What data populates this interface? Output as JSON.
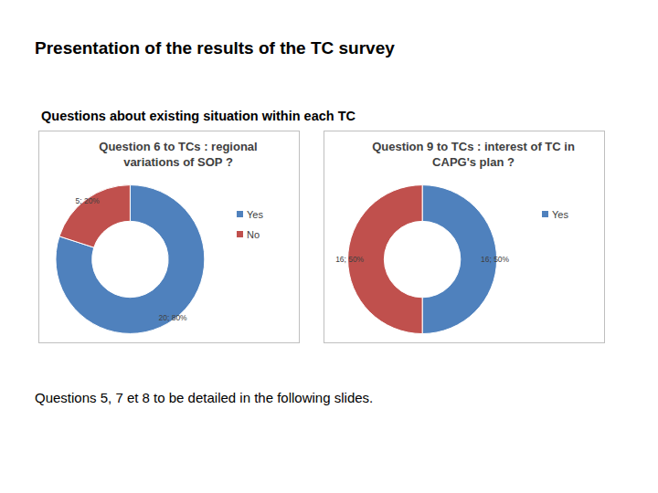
{
  "title": "Presentation of the results of the TC survey",
  "subtitle": "Questions about existing situation within each TC",
  "caption": "Questions 5, 7 et 8 to be detailed in the following slides.",
  "chart_data": [
    {
      "type": "donut",
      "title": "Question 6 to TCs : regional variations of SOP ?",
      "categories": [
        "Yes",
        "No"
      ],
      "values": [
        20,
        5
      ],
      "value_labels": [
        "20; 80%",
        "5; 20%"
      ],
      "colors": [
        "#4f81bd",
        "#c0504d"
      ],
      "data_labels": true,
      "legend": "right"
    },
    {
      "type": "donut",
      "title": "Question 9 to TCs : interest of TC in CAPG's plan ?",
      "categories": [
        "Yes",
        null
      ],
      "values": [
        16,
        16
      ],
      "value_labels": [
        "16; 50%",
        "16; 50%"
      ],
      "colors": [
        "#4f81bd",
        "#c0504d"
      ],
      "data_labels": true,
      "legend": "right"
    }
  ]
}
